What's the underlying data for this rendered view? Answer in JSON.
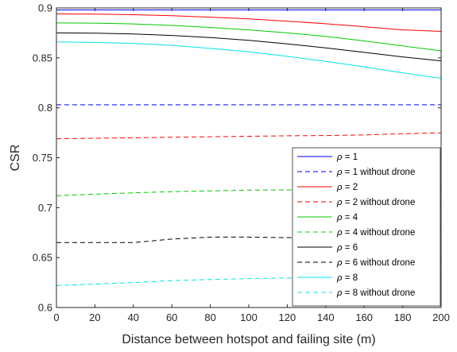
{
  "chart_data": {
    "type": "line",
    "title": "",
    "xlabel": "Distance between hotspot and failing site (m)",
    "ylabel": "CSR",
    "xlim": [
      0,
      200
    ],
    "ylim": [
      0.6,
      0.9
    ],
    "xticks": [
      "0",
      "20",
      "40",
      "60",
      "80",
      "100",
      "120",
      "140",
      "160",
      "180",
      "200"
    ],
    "yticks": [
      "0.6",
      "0.65",
      "0.7",
      "0.75",
      "0.8",
      "0.85",
      "0.9"
    ],
    "grid": false,
    "legend_position": "bottom-right",
    "x": [
      0,
      20,
      40,
      60,
      80,
      100,
      120,
      140,
      160,
      180,
      200
    ],
    "series": [
      {
        "name": "1",
        "color": "#0000ff",
        "dash": "solid",
        "values": [
          0.898,
          0.898,
          0.898,
          0.898,
          0.898,
          0.898,
          0.898,
          0.898,
          0.898,
          0.898,
          0.898
        ]
      },
      {
        "name": "1 without drone",
        "color": "#0000ff",
        "dash": "dashed",
        "values": [
          0.803,
          0.803,
          0.803,
          0.803,
          0.803,
          0.803,
          0.803,
          0.803,
          0.803,
          0.803,
          0.803
        ]
      },
      {
        "name": "2",
        "color": "#ff0000",
        "dash": "solid",
        "values": [
          0.894,
          0.8938,
          0.8932,
          0.8922,
          0.8908,
          0.889,
          0.8868,
          0.8842,
          0.8812,
          0.878,
          0.8765
        ]
      },
      {
        "name": "2 without drone",
        "color": "#ff0000",
        "dash": "dashed",
        "values": [
          0.769,
          0.7695,
          0.77,
          0.7705,
          0.771,
          0.7715,
          0.772,
          0.7722,
          0.7728,
          0.774,
          0.775
        ]
      },
      {
        "name": "4",
        "color": "#00cc00",
        "dash": "solid",
        "values": [
          0.885,
          0.8848,
          0.884,
          0.8825,
          0.8805,
          0.878,
          0.875,
          0.8715,
          0.867,
          0.862,
          0.857
        ]
      },
      {
        "name": "4 without drone",
        "color": "#00cc00",
        "dash": "dashed",
        "values": [
          0.712,
          0.7135,
          0.7148,
          0.716,
          0.7168,
          0.7175,
          0.7178,
          0.718,
          0.7185,
          0.72,
          0.722
        ]
      },
      {
        "name": "6",
        "color": "#000000",
        "dash": "solid",
        "values": [
          0.875,
          0.8748,
          0.874,
          0.8725,
          0.8703,
          0.8675,
          0.864,
          0.86,
          0.8555,
          0.851,
          0.847
        ]
      },
      {
        "name": "6 without drone",
        "color": "#000000",
        "dash": "dashed",
        "values": [
          0.665,
          0.665,
          0.665,
          0.6685,
          0.6705,
          0.6705,
          0.67,
          0.669,
          0.6705,
          0.673,
          0.676
        ]
      },
      {
        "name": "8",
        "color": "#00e5e5",
        "dash": "solid",
        "values": [
          0.866,
          0.8655,
          0.8645,
          0.8625,
          0.8595,
          0.856,
          0.8515,
          0.8465,
          0.841,
          0.835,
          0.8295
        ]
      },
      {
        "name": "8 without drone",
        "color": "#00e5e5",
        "dash": "dashed",
        "values": [
          0.622,
          0.6235,
          0.625,
          0.627,
          0.628,
          0.629,
          0.6295,
          0.6303,
          0.6315,
          0.633,
          0.634
        ]
      }
    ]
  },
  "legend": {
    "entries": [
      {
        "symbol": "ρ",
        "text": " = 1"
      },
      {
        "symbol": "ρ",
        "text": " = 1 without drone"
      },
      {
        "symbol": "ρ",
        "text": " = 2"
      },
      {
        "symbol": "ρ",
        "text": " = 2 without drone"
      },
      {
        "symbol": "ρ",
        "text": " = 4"
      },
      {
        "symbol": "ρ",
        "text": " = 4 without drone"
      },
      {
        "symbol": "ρ",
        "text": " = 6"
      },
      {
        "symbol": "ρ",
        "text": " = 6 without drone"
      },
      {
        "symbol": "ρ",
        "text": " = 8"
      },
      {
        "symbol": "ρ",
        "text": " = 8 without drone"
      }
    ]
  }
}
